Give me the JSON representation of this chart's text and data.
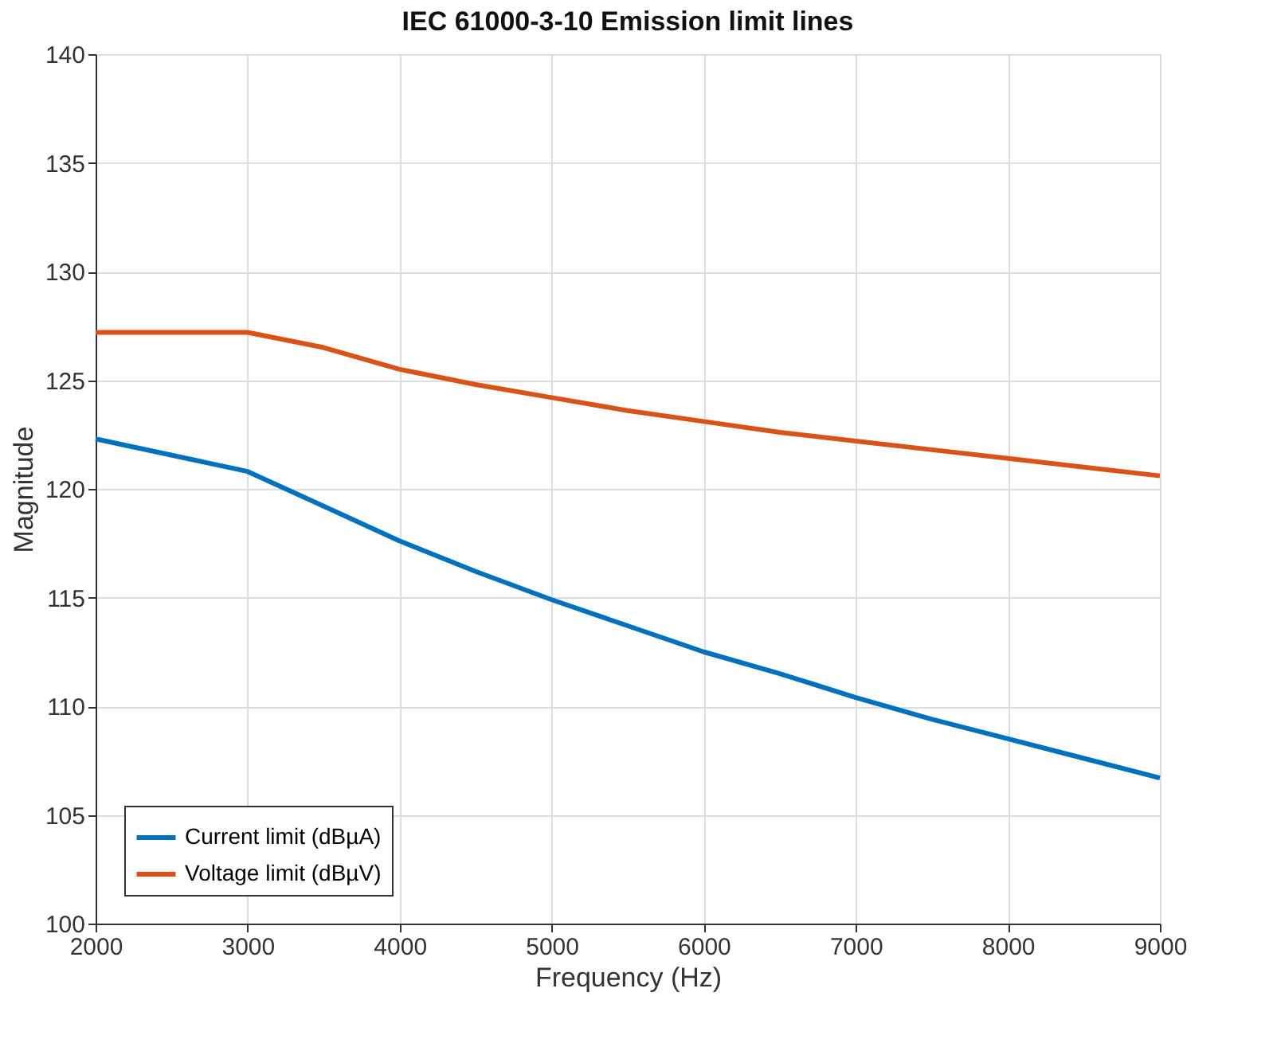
{
  "chart_data": {
    "type": "line",
    "title": "IEC 61000-3-10 Emission limit lines",
    "xlabel": "Frequency (Hz)",
    "ylabel": "Magnitude",
    "x": [
      2000,
      3000,
      3500,
      4000,
      4500,
      5000,
      5500,
      6000,
      6500,
      7000,
      7500,
      8000,
      8500,
      9000
    ],
    "series": [
      {
        "name": "Current limit (dBµA)",
        "color": "#0072bd",
        "values": [
          122.3,
          120.8,
          119.2,
          117.6,
          116.2,
          114.9,
          113.7,
          112.5,
          111.5,
          110.4,
          109.4,
          108.5,
          107.6,
          106.7
        ]
      },
      {
        "name": "Voltage limit (dBµV)",
        "color": "#d95319",
        "values": [
          127.2,
          127.2,
          126.5,
          125.5,
          124.8,
          124.2,
          123.6,
          123.1,
          122.6,
          122.2,
          121.8,
          121.4,
          121.0,
          120.6
        ]
      }
    ],
    "xlim": [
      2000,
      9000
    ],
    "xticks": [
      2000,
      3000,
      4000,
      5000,
      6000,
      7000,
      8000,
      9000
    ],
    "ylim": [
      100,
      140
    ],
    "yticks": [
      100,
      105,
      110,
      115,
      120,
      125,
      130,
      135,
      140
    ],
    "grid": true,
    "legend": "bottom left",
    "marker": "none",
    "line_style": "solid"
  }
}
